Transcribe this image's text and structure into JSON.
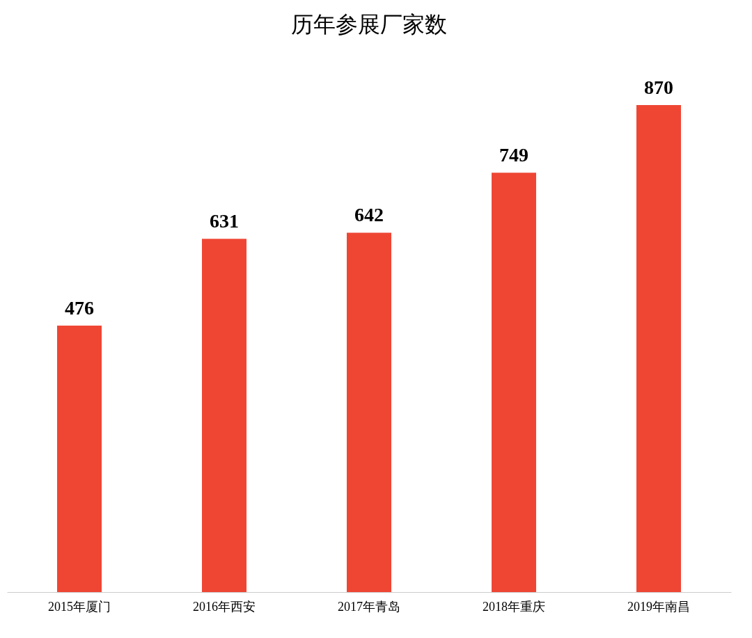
{
  "chart_data": {
    "type": "bar",
    "title": "历年参展厂家数",
    "categories": [
      "2015年厦门",
      "2016年西安",
      "2017年青岛",
      "2018年重庆",
      "2019年南昌"
    ],
    "values": [
      476,
      631,
      642,
      749,
      870
    ],
    "color": "#ef4634",
    "data_labels": true
  }
}
